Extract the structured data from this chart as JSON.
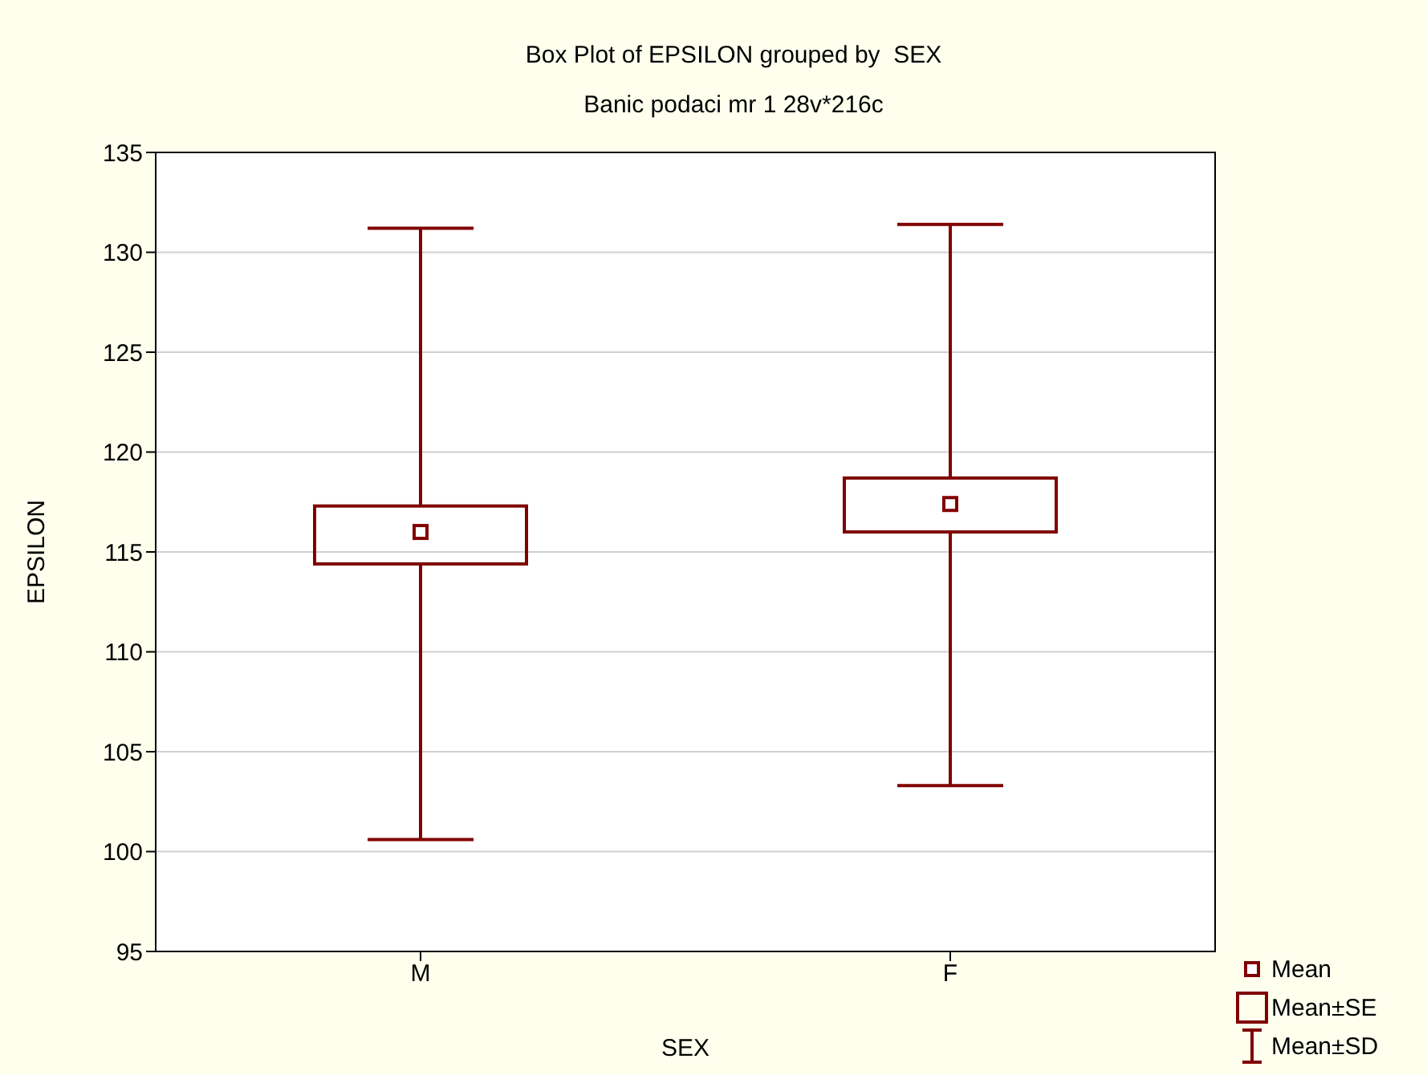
{
  "chart_data": {
    "type": "box",
    "title": "Box Plot of EPSILON grouped by  SEX",
    "subtitle": "Banic podaci mr 1 28v*216c",
    "xlabel": "SEX",
    "ylabel": "EPSILON",
    "categories": [
      "M",
      "F"
    ],
    "color": "#800000",
    "boxes": [
      {
        "low": 100.6,
        "q1": 114.4,
        "q3": 117.3,
        "high": 131.2,
        "mean": 116.0
      },
      {
        "low": 103.3,
        "q1": 116.0,
        "q3": 118.7,
        "high": 131.4,
        "mean": 117.4
      }
    ],
    "ylim": [
      95,
      135
    ],
    "yticks": [
      95,
      100,
      105,
      110,
      115,
      120,
      125,
      130,
      135
    ],
    "grid": "y",
    "annotations": [
      "Mean",
      "Mean±SE",
      "Mean±SD"
    ]
  }
}
